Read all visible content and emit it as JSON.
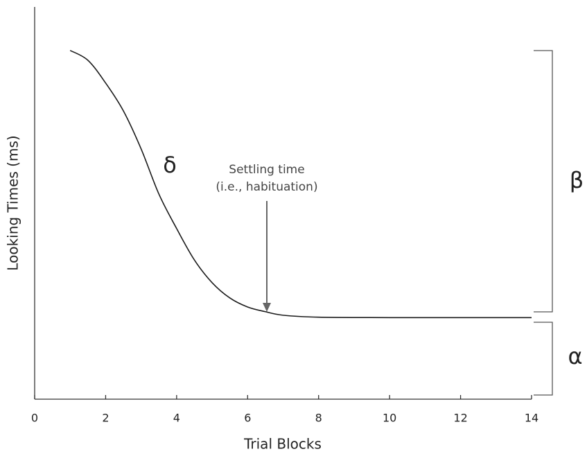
{
  "chart_data": {
    "type": "line",
    "x_label": "Trial Blocks",
    "y_label": "Looking Times (ms)",
    "x": [
      1,
      1.5,
      2,
      2.5,
      3,
      3.5,
      4,
      4.5,
      5,
      5.5,
      6,
      6.5,
      7,
      8,
      10,
      14
    ],
    "values": [
      88.9,
      86.4,
      80.6,
      73.5,
      63.8,
      52.3,
      43.5,
      35.5,
      29.7,
      25.8,
      23.5,
      22.3,
      21.4,
      20.9,
      20.8,
      20.8
    ],
    "color": "#1a1a1a",
    "xlim": [
      0,
      14
    ],
    "xticks": [
      0,
      2,
      4,
      6,
      8,
      10,
      12,
      14
    ],
    "ylim": [
      0,
      100
    ],
    "annotations": {
      "slope": "δ",
      "settling_line1": "Settling time",
      "settling_line2": "(i.e., habituation)",
      "range": "β",
      "baseline": "α"
    }
  }
}
